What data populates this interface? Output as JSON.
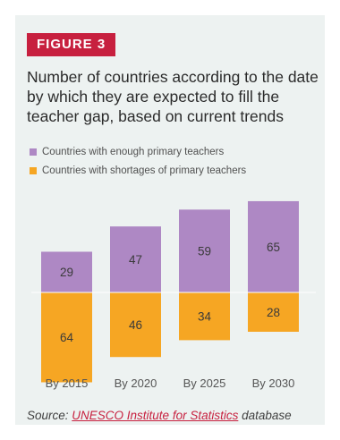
{
  "figure_label": "FIGURE 3",
  "source": {
    "prefix": "Source: ",
    "link_text": "UNESCO Institute for Statistics",
    "suffix": " database"
  },
  "colors": {
    "enough": "#ae88c4",
    "shortage": "#f6a623",
    "badge": "#c7203f",
    "background": "#edf2f1"
  },
  "chart_data": {
    "type": "bar",
    "stacked": "diverging",
    "title": "Number of countries according to the date by which they are expected to fill the teacher gap, based on current trends",
    "categories": [
      "By 2015",
      "By 2020",
      "By 2025",
      "By 2030"
    ],
    "series": [
      {
        "name": "Countries with enough primary teachers",
        "values": [
          29,
          47,
          59,
          65
        ],
        "direction": "up",
        "color": "#ae88c4"
      },
      {
        "name": "Countries with shortages of primary teachers",
        "values": [
          64,
          46,
          34,
          28
        ],
        "direction": "down",
        "color": "#f6a623"
      }
    ],
    "legend_position": "top-left",
    "grid": false
  }
}
